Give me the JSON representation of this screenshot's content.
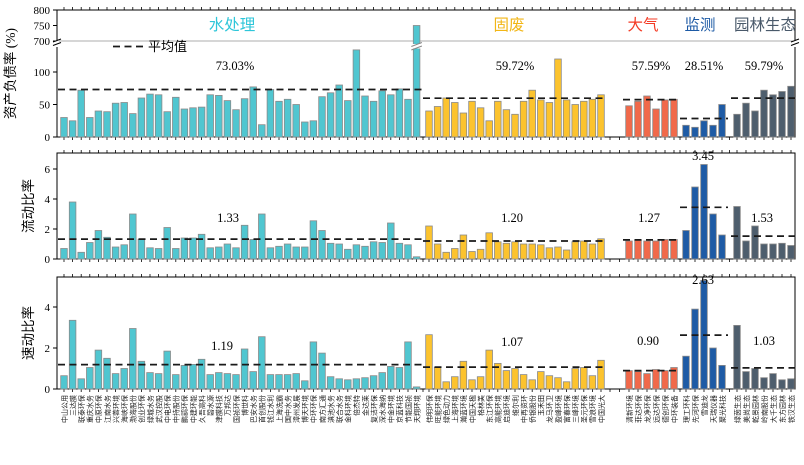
{
  "chart_data": {
    "type": "bar",
    "title": "",
    "legend": {
      "label": "平均值",
      "position": "top-left",
      "style": "dashed-line"
    },
    "layout_hints": {
      "grid": false,
      "panels_stacked": 3,
      "x_labels_rotated": true
    },
    "panels": [
      {
        "id": "debt",
        "ylabel": "资产负债率 (%)",
        "yticks": [
          "0",
          "50",
          "100",
          "700",
          "750",
          "800"
        ],
        "broken_axis": true,
        "ylim": [
          0,
          800
        ],
        "averages": {
          "display": [
            "73.03%",
            "59.72%",
            "57.59%",
            "28.51%",
            "59.79%"
          ],
          "values": [
            73.03,
            59.72,
            57.59,
            28.51,
            59.79
          ]
        }
      },
      {
        "id": "current",
        "ylabel": "流动比率",
        "yticks": [
          "0",
          "2",
          "4",
          "6"
        ],
        "broken_axis": false,
        "ylim": [
          0,
          7
        ],
        "averages": {
          "display": [
            "1.33",
            "1.20",
            "1.27",
            "3.45",
            "1.53"
          ],
          "values": [
            1.33,
            1.2,
            1.27,
            3.45,
            1.53
          ]
        }
      },
      {
        "id": "quick",
        "ylabel": "速动比率",
        "yticks": [
          "0",
          "2",
          "4"
        ],
        "broken_axis": false,
        "ylim": [
          0,
          5.5
        ],
        "averages": {
          "display": [
            "1.19",
            "1.07",
            "0.90",
            "2.63",
            "1.03"
          ],
          "values": [
            1.19,
            1.07,
            0.9,
            2.63,
            1.03
          ]
        }
      }
    ],
    "groups": [
      {
        "name": "水处理",
        "color": "#50c6d0",
        "header_color": "#2ec6d9",
        "companies": [
          "中山公用",
          "三达膜",
          "联泰环保",
          "重庆水务",
          "中原环保",
          "江南水务",
          "兴蓉环境",
          "海峡环保",
          "渤海股份",
          "创业环保",
          "绿城水务",
          "武汉控股",
          "中电环保",
          "中持股份",
          "鹏鹞环保",
          "中建环能",
          "久吾高科",
          "碧水源",
          "津膜科技",
          "万邦达",
          "国祯环保",
          "博世科",
          "巴安水务",
          "首创股份",
          "钱江水利",
          "上海洗霸",
          "国中水务",
          "漳州发展",
          "博天环境",
          "中环环保",
          "南方汇通",
          "滇池水务",
          "联合水务",
          "金科环境",
          "倍杰特",
          "金达莱",
          "复洁环保",
          "深水海纳",
          "中金环境",
          "京蓝科技",
          "节能国祯",
          "天翔环境"
        ],
        "debt": [
          30,
          25,
          72,
          30,
          40,
          39,
          52,
          53,
          36,
          60,
          66,
          65,
          39,
          61,
          43,
          45,
          46,
          65,
          64,
          56,
          42,
          59,
          77,
          19,
          73,
          55,
          58,
          50,
          23,
          25,
          62,
          68,
          80,
          56,
          134,
          63,
          55,
          71,
          65,
          74,
          58,
          750
        ],
        "current": [
          0.7,
          3.8,
          0.45,
          1.1,
          1.9,
          1.45,
          0.8,
          0.95,
          3.0,
          1.3,
          0.75,
          0.7,
          2.1,
          0.7,
          1.4,
          1.4,
          1.65,
          0.75,
          0.8,
          1.0,
          0.75,
          2.25,
          1.3,
          3.0,
          0.75,
          0.85,
          1.0,
          0.8,
          0.8,
          2.55,
          1.9,
          1.05,
          1.0,
          0.65,
          0.95,
          0.85,
          1.15,
          1.1,
          2.4,
          1.05,
          0.95,
          0.15
        ],
        "quick": [
          0.65,
          3.35,
          0.5,
          1.05,
          1.9,
          1.5,
          0.75,
          1.0,
          2.95,
          1.35,
          0.8,
          0.75,
          1.85,
          0.7,
          1.15,
          1.2,
          1.45,
          0.7,
          0.8,
          0.75,
          0.7,
          1.95,
          0.85,
          2.55,
          0.7,
          0.7,
          0.7,
          0.75,
          0.4,
          2.3,
          1.75,
          0.6,
          0.5,
          0.45,
          0.5,
          0.55,
          0.65,
          0.8,
          1.1,
          1.05,
          2.3,
          0.1
        ]
      },
      {
        "name": "固废",
        "color": "#fcc32e",
        "header_color": "#f2b616",
        "companies": [
          "伟明环保",
          "旺能环境",
          "绿色动力",
          "上海环境",
          "瀚蓝环境",
          "中国天楹",
          "格林美",
          "东江环保",
          "高能环境",
          "启迪环境",
          "维尔利",
          "中再资环",
          "侨银股份",
          "玉禾田",
          "龙马环卫",
          "盈峰环境",
          "富春环保",
          "三峰环境",
          "圣元环保",
          "雪浪环境",
          "中国光大"
        ],
        "debt": [
          40,
          47,
          60,
          53,
          37,
          55,
          45,
          25,
          55,
          42,
          35,
          55,
          72,
          57,
          53,
          120,
          57,
          50,
          55,
          58,
          65
        ],
        "current": [
          2.2,
          1.0,
          0.45,
          0.7,
          1.6,
          0.5,
          0.65,
          1.75,
          1.15,
          1.05,
          1.15,
          1.0,
          1.0,
          0.95,
          0.75,
          0.8,
          0.6,
          1.15,
          1.2,
          1.0,
          1.35
        ],
        "quick": [
          2.65,
          1.05,
          0.35,
          0.6,
          1.35,
          0.45,
          0.6,
          1.9,
          1.25,
          0.9,
          1.0,
          0.7,
          0.45,
          0.85,
          0.65,
          0.55,
          0.35,
          1.0,
          1.05,
          0.65,
          1.4
        ]
      },
      {
        "name": "大气",
        "color": "#f1694a",
        "header_color": "#f43b25",
        "companies": [
          "清新环境",
          "菲达环保",
          "龙净环保",
          "远达环保",
          "德创环保",
          "中环装备"
        ],
        "debt": [
          48,
          55,
          63,
          43,
          57,
          58
        ],
        "current": [
          1.2,
          1.25,
          1.2,
          1.2,
          1.3,
          1.3
        ],
        "quick": [
          0.9,
          0.85,
          0.75,
          0.95,
          0.9,
          1.05
        ]
      },
      {
        "name": "监测",
        "color": "#1e5ba5",
        "header_color": "#1d5aa5",
        "companies": [
          "理工环科",
          "先河环保",
          "雪迪龙",
          "天瑞仪器",
          "聚光科技"
        ],
        "debt": [
          18,
          15,
          25,
          18,
          50
        ],
        "current": [
          1.9,
          4.8,
          6.3,
          3.0,
          1.6
        ],
        "quick": [
          1.6,
          3.9,
          5.3,
          2.0,
          1.15
        ]
      },
      {
        "name": "园林生态",
        "color": "#4e5e6d",
        "header_color": "#49596a",
        "companies": [
          "绿茵生态",
          "美尚生态",
          "乾景园林",
          "岭南股份",
          "大千生态",
          "东方园林",
          "铁汉生态"
        ],
        "debt": [
          35,
          52,
          40,
          72,
          65,
          70,
          78
        ],
        "current": [
          3.5,
          1.2,
          2.2,
          1.0,
          1.0,
          1.05,
          0.9
        ],
        "quick": [
          3.1,
          0.85,
          1.0,
          0.55,
          0.75,
          0.45,
          0.5
        ]
      }
    ],
    "style": {
      "bar_stroke": "#8a8a8a",
      "axis_color": "#000000",
      "average_dash_color": "#1a1a1a",
      "seam_color": "#909090",
      "background": "#ffffff"
    }
  }
}
